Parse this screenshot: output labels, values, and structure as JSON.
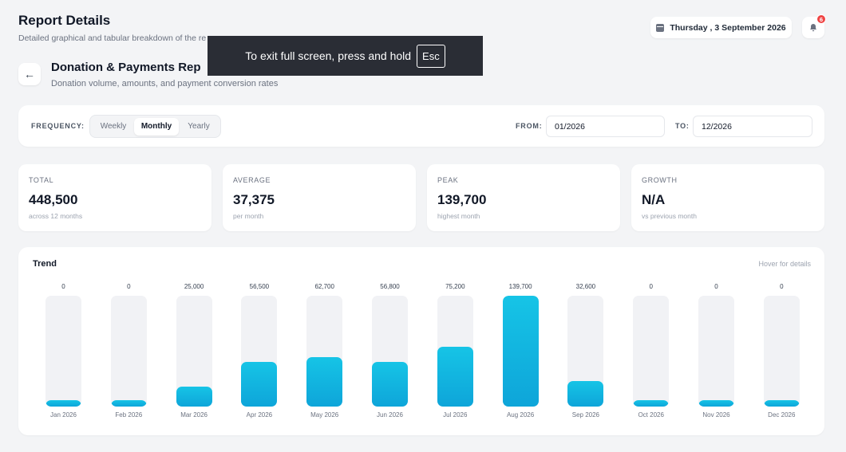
{
  "header": {
    "title": "Report Details",
    "subtitle": "Detailed graphical and tabular breakdown of the re"
  },
  "topbar": {
    "date": "Thursday , 3 September 2026",
    "notification_count": "6"
  },
  "report": {
    "title": "Donation & Payments Rep",
    "subtitle": "Donation volume, amounts, and payment conversion rates"
  },
  "toast": {
    "text": "To exit full screen, press and hold",
    "key": "Esc"
  },
  "filters": {
    "frequency_label": "FREQUENCY:",
    "options": [
      "Weekly",
      "Monthly",
      "Yearly"
    ],
    "selected": "Monthly",
    "from_label": "FROM:",
    "from_value": "01/2026",
    "to_label": "TO:",
    "to_value": "12/2026"
  },
  "stats": [
    {
      "label": "TOTAL",
      "value": "448,500",
      "caption": "across 12 months"
    },
    {
      "label": "AVERAGE",
      "value": "37,375",
      "caption": "per month"
    },
    {
      "label": "PEAK",
      "value": "139,700",
      "caption": "highest month"
    },
    {
      "label": "GROWTH",
      "value": "N/A",
      "caption": "vs previous month"
    }
  ],
  "chart": {
    "title": "Trend",
    "hint": "Hover for details"
  },
  "chart_data": {
    "type": "bar",
    "title": "Trend",
    "categories": [
      "Jan 2026",
      "Feb 2026",
      "Mar 2026",
      "Apr 2026",
      "May 2026",
      "Jun 2026",
      "Jul 2026",
      "Aug 2026",
      "Sep 2026",
      "Oct 2026",
      "Nov 2026",
      "Dec 2026"
    ],
    "values": [
      0,
      0,
      25000,
      56500,
      62700,
      56800,
      75200,
      139700,
      32600,
      0,
      0,
      0
    ],
    "value_labels": [
      "0",
      "0",
      "25,000",
      "56,500",
      "62,700",
      "56,800",
      "75,200",
      "139,700",
      "32,600",
      "0",
      "0",
      "0"
    ],
    "ylim": [
      0,
      139700
    ],
    "grid": false
  }
}
